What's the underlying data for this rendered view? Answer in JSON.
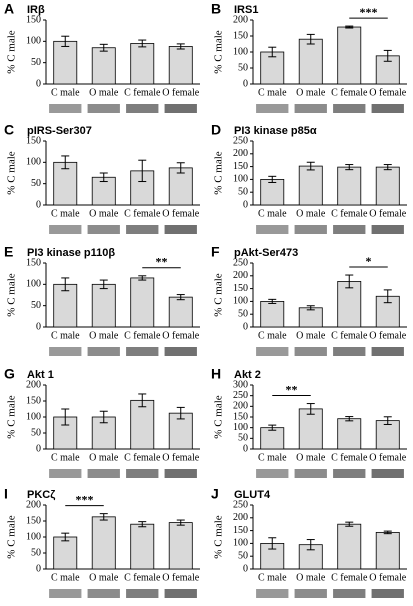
{
  "chart_data": [
    {
      "type": "bar",
      "label": "A",
      "title": "IRβ",
      "ylabel": "% C male",
      "color": "#d9d9d9",
      "categories": [
        "C male",
        "O male",
        "C female",
        "O female"
      ],
      "values": [
        100,
        85,
        95,
        88
      ],
      "errors": [
        12,
        8,
        8,
        6
      ],
      "ylim": [
        0,
        150
      ],
      "yticks": [
        0,
        50,
        100,
        150
      ]
    },
    {
      "type": "bar",
      "label": "B",
      "title": "IRS1",
      "ylabel": "% C male",
      "color": "#d9d9d9",
      "categories": [
        "C male",
        "O male",
        "C female",
        "O female"
      ],
      "values": [
        100,
        140,
        178,
        88
      ],
      "errors": [
        15,
        15,
        3,
        17
      ],
      "ylim": [
        0,
        200
      ],
      "yticks": [
        0,
        50,
        100,
        150,
        200
      ],
      "significance": {
        "categories": [
          "C female",
          "O female"
        ],
        "label": "***"
      }
    },
    {
      "type": "bar",
      "label": "C",
      "title": "pIRS-Ser307",
      "ylabel": "% C male",
      "color": "#d9d9d9",
      "categories": [
        "C male",
        "O male",
        "C female",
        "O female"
      ],
      "values": [
        100,
        65,
        80,
        87
      ],
      "errors": [
        15,
        10,
        25,
        12
      ],
      "ylim": [
        0,
        150
      ],
      "yticks": [
        0,
        50,
        100,
        150
      ]
    },
    {
      "type": "bar",
      "label": "D",
      "title": "PI3 kinase p85α",
      "ylabel": "% C male",
      "color": "#d9d9d9",
      "categories": [
        "C male",
        "O male",
        "C female",
        "O female"
      ],
      "values": [
        100,
        152,
        148,
        148
      ],
      "errors": [
        12,
        15,
        10,
        10
      ],
      "ylim": [
        0,
        250
      ],
      "yticks": [
        0,
        50,
        100,
        150,
        200,
        250
      ]
    },
    {
      "type": "bar",
      "label": "E",
      "title": "PI3 kinase p110β",
      "ylabel": "% C male",
      "color": "#d9d9d9",
      "categories": [
        "C male",
        "O male",
        "C female",
        "O female"
      ],
      "values": [
        100,
        100,
        115,
        70
      ],
      "errors": [
        15,
        10,
        5,
        6
      ],
      "ylim": [
        0,
        150
      ],
      "yticks": [
        0,
        50,
        100,
        150
      ],
      "significance": {
        "categories": [
          "C female",
          "O female"
        ],
        "label": "**"
      }
    },
    {
      "type": "bar",
      "label": "F",
      "title": "pAkt-Ser473",
      "ylabel": "% C male",
      "color": "#d9d9d9",
      "categories": [
        "C male",
        "O male",
        "C female",
        "O female"
      ],
      "values": [
        100,
        75,
        178,
        120
      ],
      "errors": [
        8,
        8,
        25,
        25
      ],
      "ylim": [
        0,
        250
      ],
      "yticks": [
        0,
        50,
        100,
        150,
        200,
        250
      ],
      "significance": {
        "categories": [
          "C female",
          "O female"
        ],
        "label": "*"
      }
    },
    {
      "type": "bar",
      "label": "G",
      "title": "Akt 1",
      "ylabel": "% C male",
      "color": "#d9d9d9",
      "categories": [
        "C male",
        "O male",
        "C female",
        "O female"
      ],
      "values": [
        100,
        100,
        152,
        112
      ],
      "errors": [
        25,
        18,
        20,
        18
      ],
      "ylim": [
        0,
        200
      ],
      "yticks": [
        0,
        50,
        100,
        150,
        200
      ]
    },
    {
      "type": "bar",
      "label": "H",
      "title": "Akt 2",
      "ylabel": "% C male",
      "color": "#d9d9d9",
      "categories": [
        "C male",
        "O male",
        "C female",
        "O female"
      ],
      "values": [
        100,
        188,
        142,
        133
      ],
      "errors": [
        12,
        25,
        10,
        18
      ],
      "ylim": [
        0,
        300
      ],
      "yticks": [
        0,
        50,
        100,
        150,
        200,
        250,
        300
      ],
      "significance": {
        "categories": [
          "C male",
          "O male"
        ],
        "label": "**"
      }
    },
    {
      "type": "bar",
      "label": "I",
      "title": "PKCζ",
      "ylabel": "% C male",
      "color": "#d9d9d9",
      "categories": [
        "C male",
        "O male",
        "C female",
        "O female"
      ],
      "values": [
        100,
        163,
        140,
        145
      ],
      "errors": [
        12,
        10,
        8,
        8
      ],
      "ylim": [
        0,
        200
      ],
      "yticks": [
        0,
        50,
        100,
        150,
        200
      ],
      "significance": {
        "categories": [
          "C male",
          "O male"
        ],
        "label": "***"
      }
    },
    {
      "type": "bar",
      "label": "J",
      "title": "GLUT4",
      "ylabel": "% C male",
      "color": "#d9d9d9",
      "categories": [
        "C male",
        "O male",
        "C female",
        "O female"
      ],
      "values": [
        100,
        95,
        175,
        143
      ],
      "errors": [
        22,
        20,
        8,
        5
      ],
      "ylim": [
        0,
        250
      ],
      "yticks": [
        0,
        50,
        100,
        150,
        200,
        250
      ]
    }
  ]
}
